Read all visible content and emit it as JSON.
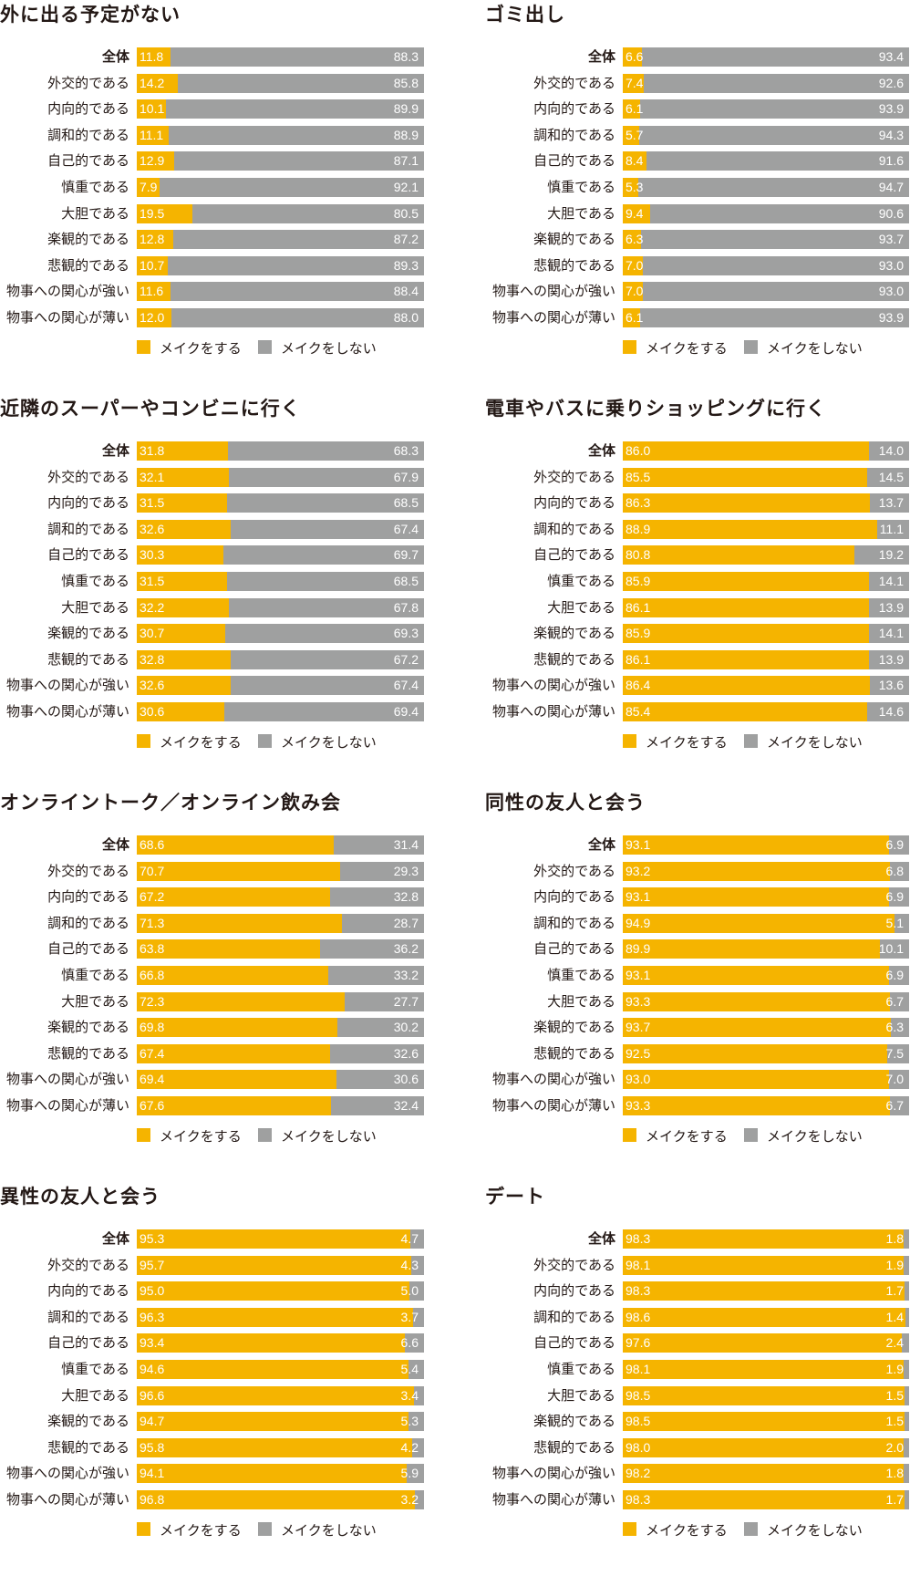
{
  "legend": [
    "メイクをする",
    "メイクをしない"
  ],
  "colors": {
    "make": "#F5B400",
    "no_make": "#9FA0A0"
  },
  "categories": [
    "全体",
    "外交的である",
    "内向的である",
    "調和的である",
    "自己的である",
    "慎重である",
    "大胆である",
    "楽観的である",
    "悲観的である",
    "物事への関心が強い",
    "物事への関心が薄い"
  ],
  "chart_data": [
    {
      "type": "bar",
      "stacked": true,
      "orientation": "horizontal",
      "title": "外に出る予定がない",
      "xlim": [
        0,
        100
      ],
      "series": [
        {
          "name": "メイクをする",
          "values": [
            11.8,
            14.2,
            10.1,
            11.1,
            12.9,
            7.9,
            19.5,
            12.8,
            10.7,
            11.6,
            12.0
          ]
        },
        {
          "name": "メイクをしない",
          "values": [
            88.3,
            85.8,
            89.9,
            88.9,
            87.1,
            92.1,
            80.5,
            87.2,
            89.3,
            88.4,
            88.0
          ]
        }
      ]
    },
    {
      "type": "bar",
      "stacked": true,
      "orientation": "horizontal",
      "title": "ゴミ出し",
      "xlim": [
        0,
        100
      ],
      "series": [
        {
          "name": "メイクをする",
          "values": [
            6.6,
            7.4,
            6.1,
            5.7,
            8.4,
            5.3,
            9.4,
            6.3,
            7.0,
            7.0,
            6.1
          ]
        },
        {
          "name": "メイクをしない",
          "values": [
            93.4,
            92.6,
            93.9,
            94.3,
            91.6,
            94.7,
            90.6,
            93.7,
            93.0,
            93.0,
            93.9
          ]
        }
      ]
    },
    {
      "type": "bar",
      "stacked": true,
      "orientation": "horizontal",
      "title": "近隣のスーパーやコンビニに行く",
      "xlim": [
        0,
        100
      ],
      "series": [
        {
          "name": "メイクをする",
          "values": [
            31.8,
            32.1,
            31.5,
            32.6,
            30.3,
            31.5,
            32.2,
            30.7,
            32.8,
            32.6,
            30.6
          ]
        },
        {
          "name": "メイクをしない",
          "values": [
            68.3,
            67.9,
            68.5,
            67.4,
            69.7,
            68.5,
            67.8,
            69.3,
            67.2,
            67.4,
            69.4
          ]
        }
      ]
    },
    {
      "type": "bar",
      "stacked": true,
      "orientation": "horizontal",
      "title": "電車やバスに乗りショッピングに行く",
      "xlim": [
        0,
        100
      ],
      "series": [
        {
          "name": "メイクをする",
          "values": [
            86.0,
            85.5,
            86.3,
            88.9,
            80.8,
            85.9,
            86.1,
            85.9,
            86.1,
            86.4,
            85.4
          ]
        },
        {
          "name": "メイクをしない",
          "values": [
            14.0,
            14.5,
            13.7,
            11.1,
            19.2,
            14.1,
            13.9,
            14.1,
            13.9,
            13.6,
            14.6
          ]
        }
      ]
    },
    {
      "type": "bar",
      "stacked": true,
      "orientation": "horizontal",
      "title": "オンライントーク／オンライン飲み会",
      "xlim": [
        0,
        100
      ],
      "series": [
        {
          "name": "メイクをする",
          "values": [
            68.6,
            70.7,
            67.2,
            71.3,
            63.8,
            66.8,
            72.3,
            69.8,
            67.4,
            69.4,
            67.6
          ]
        },
        {
          "name": "メイクをしない",
          "values": [
            31.4,
            29.3,
            32.8,
            28.7,
            36.2,
            33.2,
            27.7,
            30.2,
            32.6,
            30.6,
            32.4
          ]
        }
      ]
    },
    {
      "type": "bar",
      "stacked": true,
      "orientation": "horizontal",
      "title": "同性の友人と会う",
      "xlim": [
        0,
        100
      ],
      "series": [
        {
          "name": "メイクをする",
          "values": [
            93.1,
            93.2,
            93.1,
            94.9,
            89.9,
            93.1,
            93.3,
            93.7,
            92.5,
            93.0,
            93.3
          ]
        },
        {
          "name": "メイクをしない",
          "values": [
            6.9,
            6.8,
            6.9,
            5.1,
            10.1,
            6.9,
            6.7,
            6.3,
            7.5,
            7.0,
            6.7
          ]
        }
      ]
    },
    {
      "type": "bar",
      "stacked": true,
      "orientation": "horizontal",
      "title": "異性の友人と会う",
      "xlim": [
        0,
        100
      ],
      "series": [
        {
          "name": "メイクをする",
          "values": [
            95.3,
            95.7,
            95.0,
            96.3,
            93.4,
            94.6,
            96.6,
            94.7,
            95.8,
            94.1,
            96.8
          ]
        },
        {
          "name": "メイクをしない",
          "values": [
            4.7,
            4.3,
            5.0,
            3.7,
            6.6,
            5.4,
            3.4,
            5.3,
            4.2,
            5.9,
            3.2
          ]
        }
      ]
    },
    {
      "type": "bar",
      "stacked": true,
      "orientation": "horizontal",
      "title": "デート",
      "xlim": [
        0,
        100
      ],
      "series": [
        {
          "name": "メイクをする",
          "values": [
            98.3,
            98.1,
            98.3,
            98.6,
            97.6,
            98.1,
            98.5,
            98.5,
            98.0,
            98.2,
            98.3
          ]
        },
        {
          "name": "メイクをしない",
          "values": [
            1.8,
            1.9,
            1.7,
            1.4,
            2.4,
            1.9,
            1.5,
            1.5,
            2.0,
            1.8,
            1.7
          ]
        }
      ]
    }
  ]
}
